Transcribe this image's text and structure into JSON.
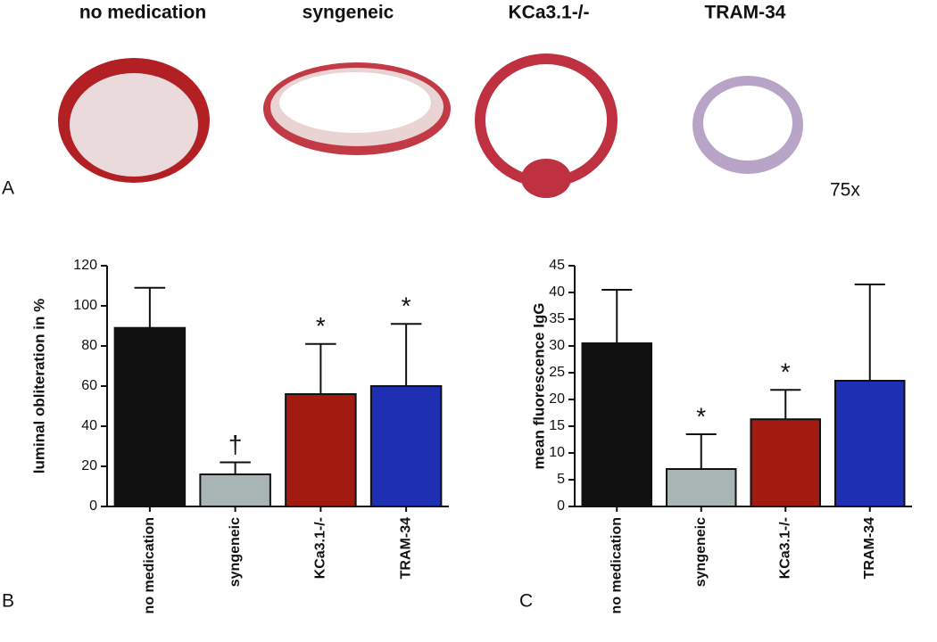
{
  "panel_a": {
    "label": "A",
    "captions": [
      "no medication",
      "syngeneic",
      "KCa3.1-/-",
      "TRAM-34"
    ],
    "magnification": "75x"
  },
  "chart_data": [
    {
      "type": "bar",
      "panel_label": "B",
      "y_label": "luminal obliteration in %",
      "categories": [
        "no medication",
        "syngeneic",
        "KCa3.1-/-",
        "TRAM-34"
      ],
      "values": [
        89,
        16,
        56,
        60
      ],
      "errors": [
        20,
        6,
        25,
        31
      ],
      "annotations": [
        null,
        "†",
        "*",
        "*"
      ],
      "colors": [
        "#111111",
        "#a9b4b4",
        "#a31a10",
        "#1f2fb3"
      ],
      "ylim": [
        0,
        120
      ],
      "yticks": [
        0,
        20,
        40,
        60,
        80,
        100,
        120
      ]
    },
    {
      "type": "bar",
      "panel_label": "C",
      "y_label": "mean fluorescence IgG",
      "categories": [
        "no medication",
        "syngeneic",
        "KCa3.1-/-",
        "TRAM-34"
      ],
      "values": [
        30.5,
        7,
        16.3,
        23.5
      ],
      "errors": [
        10,
        6.5,
        5.5,
        18
      ],
      "annotations": [
        null,
        "*",
        "*",
        null
      ],
      "colors": [
        "#111111",
        "#a9b4b4",
        "#a31a10",
        "#1f2fb3"
      ],
      "ylim": [
        0,
        45
      ],
      "yticks": [
        0,
        5,
        10,
        15,
        20,
        25,
        30,
        35,
        40,
        45
      ]
    }
  ]
}
